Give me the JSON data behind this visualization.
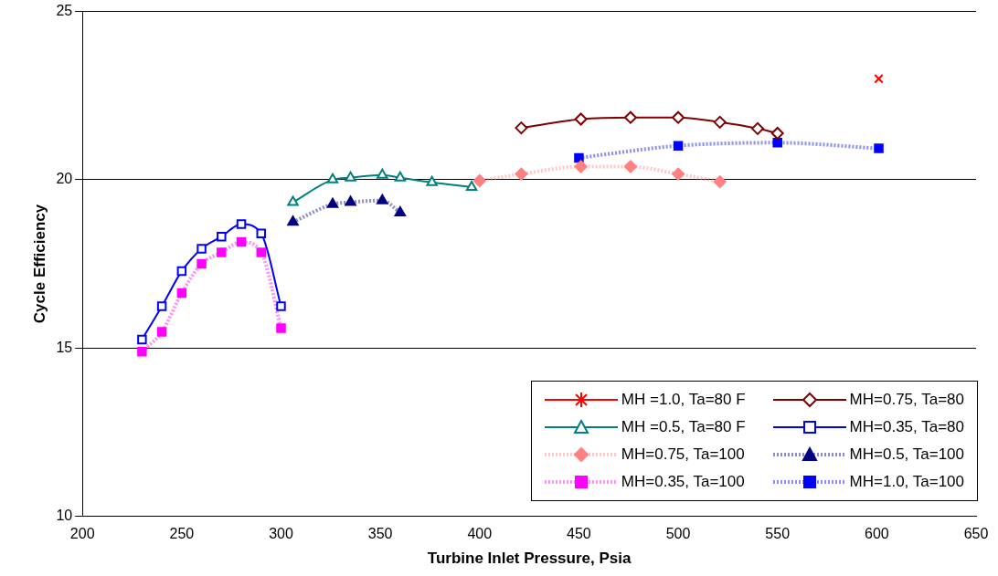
{
  "chart_data": {
    "type": "line",
    "xlabel": "Turbine Inlet Pressure, Psia",
    "ylabel": "Cycle Efficiency",
    "xlim": [
      200,
      650
    ],
    "xticks": [
      200,
      250,
      300,
      350,
      400,
      450,
      500,
      550,
      600,
      650
    ],
    "ylim": [
      10,
      25
    ],
    "yticks": [
      10,
      15,
      20,
      25
    ],
    "grid": "y",
    "legend": "bottom right",
    "series": [
      {
        "name": "MH =1.0, Ta=80 F",
        "color": "#ff0000",
        "marker": "cross",
        "line_style": "solid",
        "x": [
          601
        ],
        "values": [
          23.0
        ]
      },
      {
        "name": "MH=0.75, Ta=80",
        "color": "#800000",
        "marker": "diamond",
        "line_style": "solid",
        "x": [
          421,
          451,
          476,
          500,
          521,
          540,
          550
        ],
        "values": [
          21.54,
          21.8,
          21.85,
          21.85,
          21.71,
          21.52,
          21.38
        ]
      },
      {
        "name": "MH =0.5, Ta=80 F",
        "color": "#008080",
        "marker": "triangle",
        "line_style": "solid",
        "x": [
          306,
          326,
          335,
          351,
          360,
          376,
          396
        ],
        "values": [
          19.33,
          20.0,
          20.06,
          20.14,
          20.06,
          19.92,
          19.78
        ]
      },
      {
        "name": "MH=0.35, Ta=80",
        "color": "#0000ff",
        "marker": "square",
        "line_style": "solid",
        "x": [
          230,
          240,
          250,
          260,
          270,
          280,
          290,
          300
        ],
        "values": [
          15.25,
          16.24,
          17.28,
          17.95,
          18.31,
          18.68,
          18.4,
          16.24
        ]
      },
      {
        "name": "MH=0.75, Ta=100",
        "color": "#ff8080",
        "marker": "diamond",
        "line_style": "dotted",
        "x": [
          400,
          421,
          451,
          476,
          500,
          521
        ],
        "values": [
          19.97,
          20.17,
          20.39,
          20.39,
          20.17,
          19.94
        ]
      },
      {
        "name": "MH=0.5, Ta=100",
        "color": "#000080",
        "marker": "triangle",
        "line_style": "dotted",
        "x": [
          306,
          326,
          335,
          351,
          360
        ],
        "values": [
          18.74,
          19.27,
          19.33,
          19.38,
          19.02
        ]
      },
      {
        "name": "MH=0.35, Ta=100",
        "color": "#ff00ff",
        "marker": "square",
        "line_style": "dotted",
        "x": [
          230,
          240,
          250,
          260,
          270,
          280,
          290,
          300
        ],
        "values": [
          14.89,
          15.48,
          16.63,
          17.5,
          17.84,
          18.15,
          17.84,
          15.59
        ]
      },
      {
        "name": "MH=1.0, Ta=100",
        "color": "#0000ff",
        "marker": "square",
        "line_style": "dotted",
        "x": [
          450,
          500,
          550,
          601
        ],
        "values": [
          20.65,
          21.01,
          21.1,
          20.93
        ]
      }
    ]
  }
}
